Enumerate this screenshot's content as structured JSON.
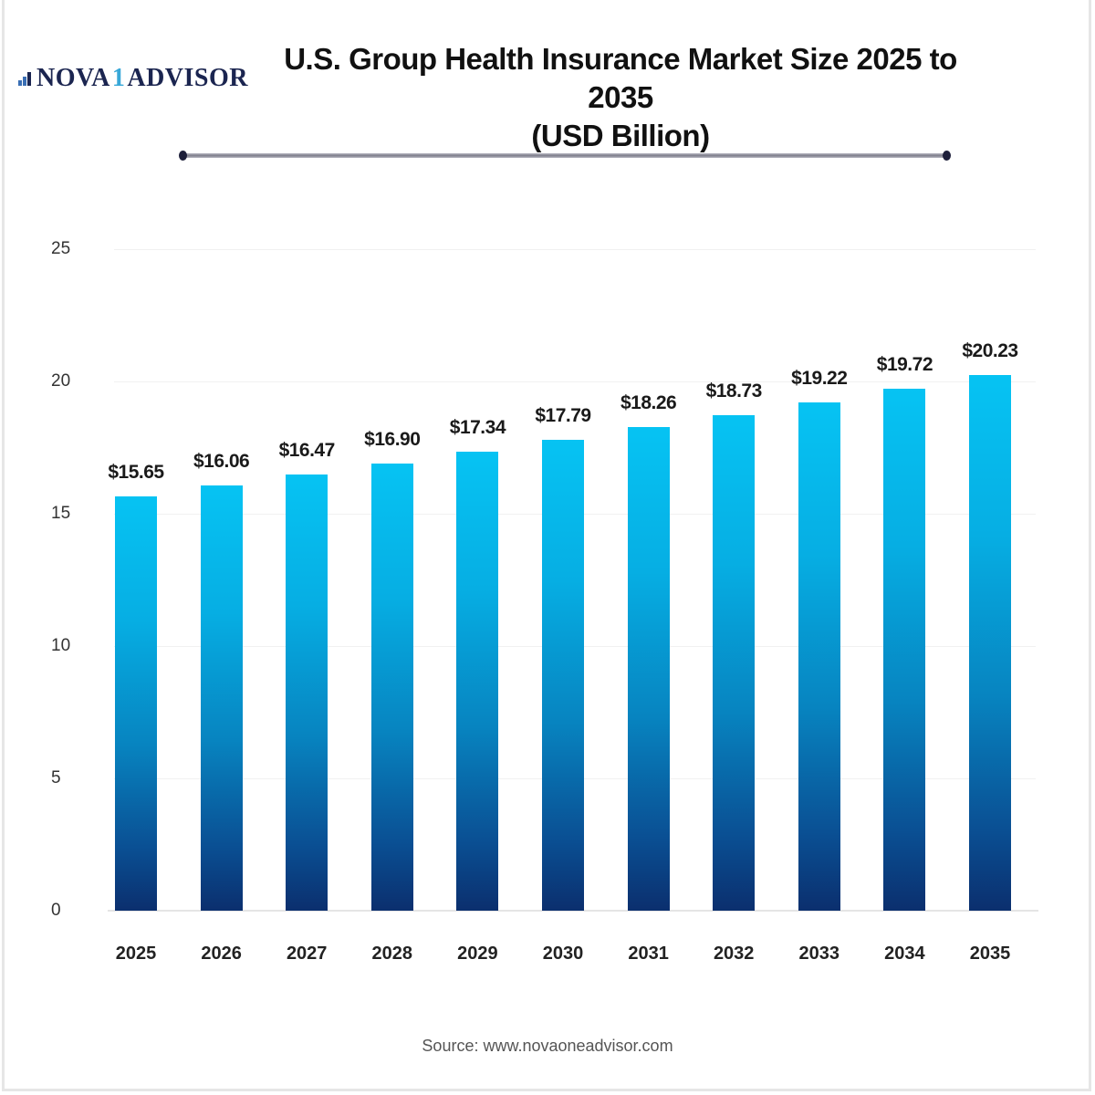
{
  "brand": {
    "logo_left": "NOVA",
    "logo_sep": "1",
    "logo_right": "ADVISOR"
  },
  "header": {
    "title_line1": "U.S. Group Health Insurance Market Size 2025 to 2035",
    "title_line2": "(USD Billion)"
  },
  "footer": {
    "source": "Source: www.novaoneadvisor.com"
  },
  "colors": {
    "bar_top": "#06c3f3",
    "bar_bottom": "#0b2f6e",
    "brand_navy": "#1b2550"
  },
  "y_axis": {
    "ticks": [
      "0",
      "5",
      "10",
      "15",
      "20",
      "25"
    ]
  },
  "bars": [
    {
      "year": "2025",
      "label": "$15.65"
    },
    {
      "year": "2026",
      "label": "$16.06"
    },
    {
      "year": "2027",
      "label": "$16.47"
    },
    {
      "year": "2028",
      "label": "$16.90"
    },
    {
      "year": "2029",
      "label": "$17.34"
    },
    {
      "year": "2030",
      "label": "$17.79"
    },
    {
      "year": "2031",
      "label": "$18.26"
    },
    {
      "year": "2032",
      "label": "$18.73"
    },
    {
      "year": "2033",
      "label": "$19.22"
    },
    {
      "year": "2034",
      "label": "$19.72"
    },
    {
      "year": "2035",
      "label": "$20.23"
    }
  ],
  "chart_data": {
    "type": "bar",
    "title": "U.S. Group Health Insurance Market Size 2025 to 2035 (USD Billion)",
    "categories": [
      "2025",
      "2026",
      "2027",
      "2028",
      "2029",
      "2030",
      "2031",
      "2032",
      "2033",
      "2034",
      "2035"
    ],
    "values": [
      15.65,
      16.06,
      16.47,
      16.9,
      17.34,
      17.79,
      18.26,
      18.73,
      19.22,
      19.72,
      20.23
    ],
    "data_labels": [
      "$15.65",
      "$16.06",
      "$16.47",
      "$16.90",
      "$17.34",
      "$17.79",
      "$18.26",
      "$18.73",
      "$19.22",
      "$19.72",
      "$20.23"
    ],
    "xlabel": "",
    "ylabel": "",
    "ylim": [
      0,
      25
    ],
    "yticks": [
      0,
      5,
      10,
      15,
      20,
      25
    ],
    "grid": false,
    "legend": null,
    "source": "Source: www.novaoneadvisor.com"
  }
}
